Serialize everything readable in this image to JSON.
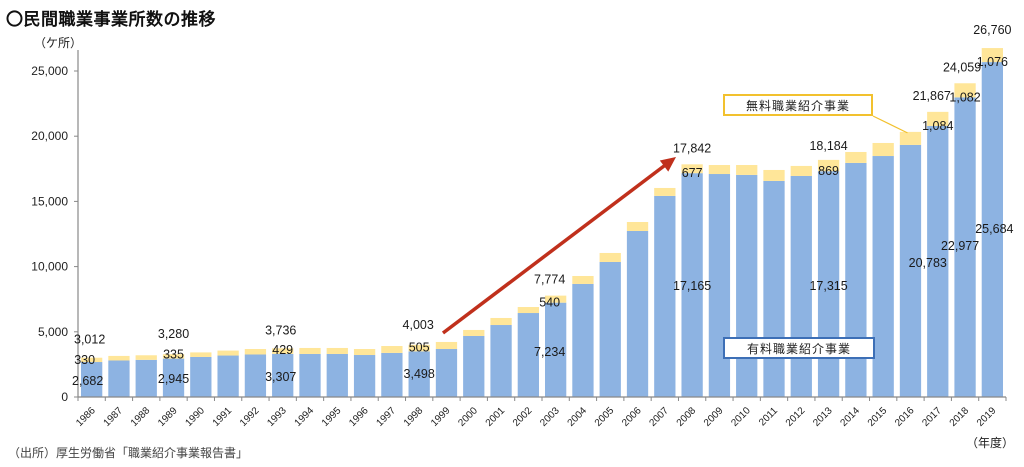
{
  "title": "〇民間職業事業所数の推移",
  "source": "（出所）厚生労働省「職業紹介事業報告書」",
  "colors": {
    "paid": "#8db3e2",
    "free": "#ffe699",
    "arrow": "#c0301c",
    "axis": "#888888",
    "free_border": "#f2c12e",
    "paid_border": "#3d6fb6"
  },
  "chart_data": {
    "type": "bar",
    "stacked": true,
    "title": "〇民間職業事業所数の推移",
    "ylabel": "（ケ所）",
    "xlabel": "（年度）",
    "ylim": [
      0,
      27000
    ],
    "yticks": [
      0,
      5000,
      10000,
      15000,
      20000,
      25000
    ],
    "ytick_labels": [
      "0",
      "5,000",
      "10,000",
      "15,000",
      "20,000",
      "25,000"
    ],
    "categories": [
      "1986",
      "1987",
      "1988",
      "1989",
      "1990",
      "1991",
      "1992",
      "1993",
      "1994",
      "1995",
      "1996",
      "1997",
      "1998",
      "1999",
      "2000",
      "2001",
      "2002",
      "2003",
      "2004",
      "2005",
      "2006",
      "2007",
      "2008",
      "2009",
      "2010",
      "2011",
      "2012",
      "2013",
      "2014",
      "2015",
      "2016",
      "2017",
      "2018",
      "2019"
    ],
    "series": [
      {
        "name": "有料職業紹介事業",
        "values": [
          2682,
          2800,
          2850,
          2945,
          3070,
          3180,
          3260,
          3307,
          3300,
          3300,
          3220,
          3380,
          3498,
          3680,
          4680,
          5520,
          6440,
          7234,
          8670,
          10355,
          12730,
          15420,
          17165,
          17100,
          17030,
          16570,
          16950,
          17315,
          17950,
          18480,
          19330,
          20783,
          22977,
          25684
        ]
      },
      {
        "name": "無料職業紹介事業",
        "values": [
          330,
          350,
          350,
          335,
          350,
          380,
          420,
          429,
          460,
          460,
          460,
          530,
          505,
          540,
          460,
          540,
          460,
          540,
          610,
          690,
          690,
          610,
          677,
          690,
          760,
          840,
          770,
          869,
          840,
          1000,
          1000,
          1084,
          1082,
          1076
        ]
      }
    ],
    "totals_labeled": {
      "1986": "3,012",
      "1989": "3,280",
      "1993": "3,736",
      "1998": "4,003",
      "2003": "7,774",
      "2008": "17,842",
      "2013": "18,184",
      "2017": "21,867",
      "2018": "24,059",
      "2019": "26,760"
    },
    "paid_labeled": {
      "1986": "2,682",
      "1989": "2,945",
      "1993": "3,307",
      "1998": "3,498",
      "2003": "7,234",
      "2008": "17,165",
      "2013": "17,315",
      "2017": "20,783",
      "2018": "22,977",
      "2019": "25,684"
    },
    "free_labeled": {
      "1986": "330",
      "1989": "335",
      "1993": "429",
      "1998": "505",
      "2003": "540",
      "2008": "677",
      "2013": "869",
      "2017": "1,084",
      "2018": "1,082",
      "2019": "1,076"
    },
    "annotations": [
      {
        "type": "arrow",
        "from_category": "1999",
        "to_category": "2008",
        "color": "#c0301c"
      },
      {
        "type": "legend-callout",
        "text": "無料職業紹介事業",
        "points_to": "2016"
      },
      {
        "type": "legend-label",
        "text": "有料職業紹介事業"
      }
    ],
    "legend": [
      "有料職業紹介事業",
      "無料職業紹介事業"
    ],
    "grid": false
  }
}
